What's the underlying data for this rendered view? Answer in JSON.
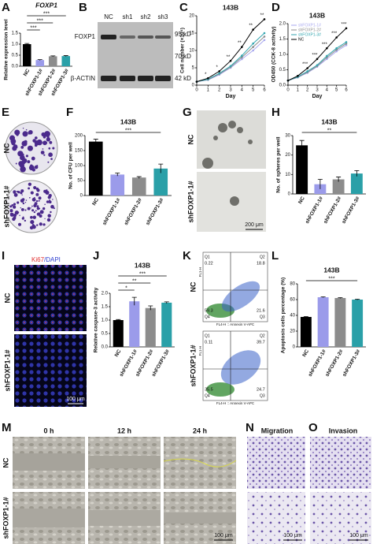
{
  "panel_labels": [
    "A",
    "B",
    "C",
    "D",
    "E",
    "F",
    "G",
    "H",
    "I",
    "J",
    "K",
    "L",
    "M",
    "N",
    "O"
  ],
  "blot": {
    "lanes": [
      "NC",
      "sh1",
      "sh2",
      "sh3"
    ],
    "rows": [
      "FOXP1",
      "β-ACTIN"
    ],
    "markers": [
      "95 kD",
      "70 kD",
      "42 kD"
    ]
  },
  "colony": {
    "rows": [
      "NC",
      "shFOXP1-1#"
    ]
  },
  "spheres": {
    "rows": [
      "NC",
      "shFOXP1-1#"
    ],
    "scale": "200 μm"
  },
  "staining": {
    "markers": [
      "Ki67",
      "/DAPI"
    ],
    "rows": [
      "NC",
      "shFOXP1-1#"
    ],
    "scale": "100 μm"
  },
  "flow": {
    "rows": [
      "NC",
      "shFOXP1-1#"
    ],
    "x_label": "FL4-H :: Annexin V-APC",
    "y_label": "FL1-H",
    "quadrants": [
      [
        0.22,
        18.8,
        59.3,
        21.6
      ],
      [
        0.11,
        39.7,
        35.5,
        24.7
      ]
    ],
    "quadrant_names": [
      "Q1",
      "Q2",
      "Q4",
      "Q3"
    ]
  },
  "wound": {
    "times": [
      "0 h",
      "12 h",
      "24 h"
    ],
    "rows": [
      "NC",
      "shFOXP1-1#"
    ],
    "scale": "100 μm"
  },
  "transwell": {
    "titles": [
      "Migration",
      "Invasion"
    ],
    "scale": "100 μm"
  },
  "chart_data": [
    {
      "type": "bar",
      "title": "FOXP1",
      "ylabel": "Relative expression level",
      "categories": [
        "NC",
        "shFOXP1-1#",
        "shFOXP1-2#",
        "shFOXP1-3#"
      ],
      "values": [
        1.0,
        0.28,
        0.45,
        0.46
      ],
      "errors": [
        0.03,
        0.02,
        0.02,
        0.02
      ],
      "colors": [
        "#000000",
        "#9b9bea",
        "#8c8c8c",
        "#2aa0a8"
      ],
      "ylim": [
        0,
        1.5
      ],
      "yticks": [
        {
          "value": 0,
          "label": "0.0"
        },
        {
          "value": 0.5,
          "label": "0.5"
        },
        {
          "value": 1,
          "label": "1.0"
        },
        {
          "value": 1.5,
          "label": "1.5"
        }
      ],
      "annotations": [
        "***",
        "***",
        "***"
      ]
    },
    {
      "type": "line",
      "title": "143B",
      "xlabel": "Day",
      "ylabel": "Cell number (×10⁴)",
      "x": [
        0,
        1,
        2,
        3,
        4,
        5,
        6
      ],
      "xlim": [
        0,
        6
      ],
      "xticks": [
        0,
        1,
        2,
        3,
        4,
        5,
        6
      ],
      "ylim": [
        0,
        20
      ],
      "yticks": [
        0,
        5,
        10,
        15,
        20
      ],
      "series": [
        {
          "name": "shFOXP1-1#",
          "color": "#a9a9ef",
          "values": [
            1,
            1.5,
            3,
            5,
            7.5,
            10,
            13
          ]
        },
        {
          "name": "shFOXP1-2#",
          "color": "#8c8c8c",
          "values": [
            1,
            1.6,
            3.2,
            5.2,
            8,
            11,
            14
          ]
        },
        {
          "name": "shFOXP1-3#",
          "color": "#33a6b0",
          "values": [
            1,
            1.7,
            3.4,
            5.5,
            8.5,
            12,
            15
          ]
        },
        {
          "name": "NC",
          "color": "#000000",
          "values": [
            1,
            2,
            4,
            7,
            11,
            16,
            19
          ]
        }
      ],
      "annotations": [
        null,
        "*",
        "*",
        "**",
        "**",
        "**",
        "**"
      ]
    },
    {
      "type": "line",
      "title": "143B",
      "xlabel": "Day",
      "ylabel": "OD450 (CCK-8 activity)",
      "x": [
        0,
        1,
        2,
        3,
        4,
        5,
        6
      ],
      "xlim": [
        0,
        6
      ],
      "xticks": [
        0,
        1,
        2,
        3,
        4,
        5,
        6
      ],
      "ylim": [
        0,
        2
      ],
      "yticks": [
        {
          "value": 0,
          "label": "0.0"
        },
        {
          "value": 0.5,
          "label": "0.5"
        },
        {
          "value": 1,
          "label": "1.0"
        },
        {
          "value": 1.5,
          "label": "1.5"
        },
        {
          "value": 2,
          "label": "2.0"
        }
      ],
      "legend": "upper left",
      "series": [
        {
          "name": "shFOXP1-1#",
          "color": "#a9a9ef",
          "values": [
            0.15,
            0.25,
            0.4,
            0.6,
            0.85,
            1.1,
            1.3
          ]
        },
        {
          "name": "shFOXP1-2#",
          "color": "#8c8c8c",
          "values": [
            0.15,
            0.26,
            0.42,
            0.62,
            0.9,
            1.15,
            1.35
          ]
        },
        {
          "name": "shFOXP1-3#",
          "color": "#33a6b0",
          "values": [
            0.15,
            0.27,
            0.45,
            0.65,
            0.95,
            1.2,
            1.4
          ]
        },
        {
          "name": "NC",
          "color": "#000000",
          "values": [
            0.15,
            0.3,
            0.55,
            0.85,
            1.2,
            1.55,
            1.85
          ]
        }
      ],
      "annotations": [
        null,
        null,
        "***",
        "***",
        "***",
        "***",
        "***"
      ]
    },
    {
      "type": "bar",
      "title": "143B",
      "ylabel": "No. of CFU per well",
      "categories": [
        "NC",
        "shFOXP1-1#",
        "shFOXP1-2#",
        "shFOXP1-3#"
      ],
      "values": [
        180,
        70,
        60,
        90
      ],
      "errors": [
        8,
        5,
        3,
        15
      ],
      "colors": [
        "#000000",
        "#9b9bea",
        "#8c8c8c",
        "#2aa0a8"
      ],
      "ylim": [
        0,
        200
      ],
      "yticks": [
        0,
        50,
        100,
        150,
        200
      ],
      "annotations": [
        "***"
      ]
    },
    {
      "type": "bar",
      "title": "143B",
      "ylabel": "No. of spheres per well",
      "categories": [
        "NC",
        "shFOXP1-1#",
        "shFOXP1-2#",
        "shFOXP1-3#"
      ],
      "values": [
        25,
        5,
        7.5,
        10.5
      ],
      "errors": [
        2.5,
        2.5,
        1.2,
        1.5
      ],
      "colors": [
        "#000000",
        "#9b9bea",
        "#8c8c8c",
        "#2aa0a8"
      ],
      "ylim": [
        0,
        30
      ],
      "yticks": [
        0,
        10,
        20,
        30
      ],
      "annotations": [
        "**"
      ]
    },
    {
      "type": "bar",
      "title": "143B",
      "ylabel": "Relative caspase-3 activity",
      "categories": [
        "NC",
        "shFOXP1-1#",
        "shFOXP1-2#",
        "shFOXP1-3#"
      ],
      "values": [
        1.0,
        1.7,
        1.45,
        1.65
      ],
      "errors": [
        0.02,
        0.15,
        0.08,
        0.03
      ],
      "colors": [
        "#000000",
        "#9b9bea",
        "#8c8c8c",
        "#2aa0a8"
      ],
      "ylim": [
        0,
        2
      ],
      "yticks": [
        {
          "value": 0,
          "label": "0.0"
        },
        {
          "value": 0.5,
          "label": "0.5"
        },
        {
          "value": 1,
          "label": "1.0"
        },
        {
          "value": 1.5,
          "label": "1.5"
        },
        {
          "value": 2,
          "label": "2.0"
        }
      ],
      "annotations": [
        "***",
        "**",
        "*"
      ]
    },
    {
      "type": "bar",
      "title": "143B",
      "ylabel": "Apoptosis cells percentage (%)",
      "categories": [
        "NC",
        "shFOXP1-1#",
        "shFOXP1-2#",
        "shFOXP1-3#"
      ],
      "values": [
        38,
        63,
        62,
        60
      ],
      "errors": [
        0.5,
        0.5,
        0.5,
        0.5
      ],
      "colors": [
        "#000000",
        "#9b9bea",
        "#8c8c8c",
        "#2aa0a8"
      ],
      "ylim": [
        0,
        80
      ],
      "yticks": [
        0,
        20,
        40,
        60,
        80
      ],
      "annotations": [
        "***"
      ]
    }
  ]
}
